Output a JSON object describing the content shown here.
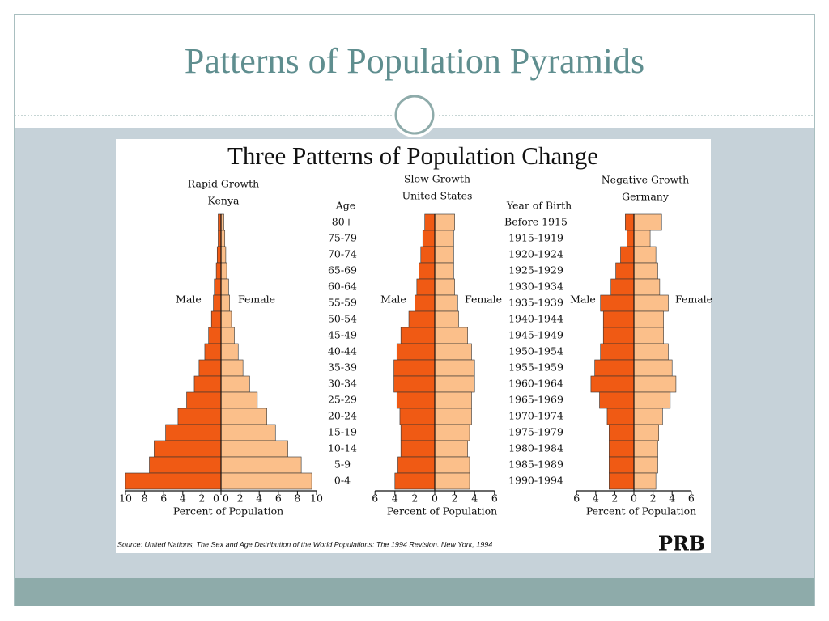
{
  "slide_title": "Patterns of Population Pyramids",
  "figure_title": "Three Patterns of Population Change",
  "source": "Source: United Nations, The Sex and Age Distribution of the World Populations: The 1994 Revision. New York, 1994",
  "logo": "PRB",
  "chart_data": [
    {
      "type": "pyramid",
      "title": "Rapid Growth",
      "subtitle": "Kenya",
      "category_label": "Age",
      "categories": [
        "80+",
        "75-79",
        "70-74",
        "65-69",
        "60-64",
        "55-59",
        "50-54",
        "45-49",
        "40-44",
        "35-39",
        "30-34",
        "25-29",
        "20-24",
        "15-19",
        "10-14",
        "5-9",
        "0-4"
      ],
      "series": [
        {
          "name": "Male",
          "color": "#f05a14",
          "values": [
            0.3,
            0.3,
            0.4,
            0.5,
            0.7,
            0.8,
            1.0,
            1.3,
            1.7,
            2.3,
            2.8,
            3.6,
            4.5,
            5.8,
            7.0,
            7.5,
            10
          ]
        },
        {
          "name": "Female",
          "color": "#fbbf8a",
          "values": [
            0.3,
            0.4,
            0.5,
            0.6,
            0.8,
            0.9,
            1.1,
            1.4,
            1.8,
            2.3,
            3.0,
            3.8,
            4.8,
            5.7,
            7.0,
            8.4,
            9.5
          ]
        }
      ],
      "xlabel": "Percent of Population",
      "xlim": [
        0,
        10
      ],
      "xticks": [
        0,
        2,
        4,
        6,
        8,
        10
      ],
      "zero_both_sides": true
    },
    {
      "type": "pyramid",
      "title": "Slow Growth",
      "subtitle": "United States",
      "series": [
        {
          "name": "Male",
          "color": "#f05a14",
          "values": [
            1.0,
            1.2,
            1.4,
            1.6,
            1.8,
            2.0,
            2.6,
            3.4,
            3.8,
            4.1,
            4.1,
            3.8,
            3.5,
            3.4,
            3.4,
            3.7,
            4.0
          ]
        },
        {
          "name": "Female",
          "color": "#fbbf8a",
          "values": [
            2.0,
            1.9,
            1.9,
            1.9,
            2.0,
            2.3,
            2.4,
            3.3,
            3.7,
            4.0,
            4.0,
            3.7,
            3.7,
            3.5,
            3.3,
            3.5,
            3.5
          ]
        }
      ],
      "xlabel": "Percent of Population",
      "xlim": [
        0,
        6
      ],
      "xticks": [
        0,
        2,
        4,
        6
      ],
      "zero_both_sides": false
    },
    {
      "type": "pyramid",
      "title": "Negative Growth",
      "subtitle": "Germany",
      "category_label": "Year of Birth",
      "categories": [
        "Before 1915",
        "1915-1919",
        "1920-1924",
        "1925-1929",
        "1930-1934",
        "1935-1939",
        "1940-1944",
        "1945-1949",
        "1950-1954",
        "1955-1959",
        "1960-1964",
        "1965-1969",
        "1970-1974",
        "1975-1979",
        "1980-1984",
        "1985-1989",
        "1990-1994"
      ],
      "series": [
        {
          "name": "Male",
          "color": "#f05a14",
          "values": [
            0.9,
            0.7,
            1.4,
            1.9,
            2.4,
            3.5,
            3.2,
            3.2,
            3.5,
            4.1,
            4.5,
            3.6,
            2.8,
            2.6,
            2.6,
            2.6,
            2.6
          ]
        },
        {
          "name": "Female",
          "color": "#fbbf8a",
          "values": [
            2.9,
            1.7,
            2.3,
            2.5,
            2.7,
            3.6,
            3.1,
            3.1,
            3.6,
            4.0,
            4.4,
            3.8,
            3.0,
            2.6,
            2.5,
            2.5,
            2.3
          ]
        }
      ],
      "xlabel": "Percent of Population",
      "xlim": [
        0,
        6
      ],
      "xticks": [
        0,
        2,
        4,
        6
      ],
      "zero_both_sides": false
    }
  ]
}
